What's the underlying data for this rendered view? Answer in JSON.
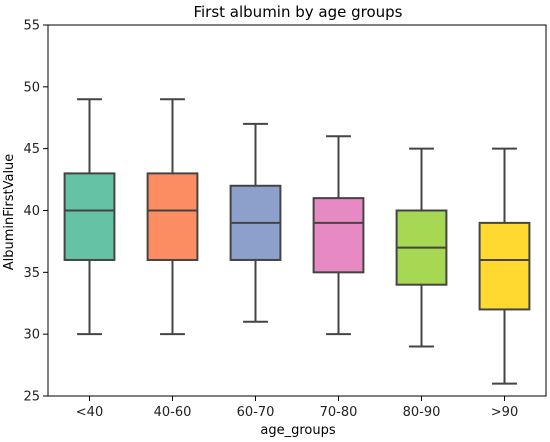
{
  "chart_data": {
    "type": "box",
    "title": "First albumin by age groups",
    "xlabel": "age_groups",
    "ylabel": "AlbuminFirstValue",
    "ylim": [
      25,
      55
    ],
    "yticks": [
      25,
      30,
      35,
      40,
      45,
      50,
      55
    ],
    "grid": false,
    "legend": "none",
    "categories": [
      "<40",
      "40-60",
      "60-70",
      "70-80",
      "80-90",
      ">90"
    ],
    "boxes": [
      {
        "category": "<40",
        "whisker_low": 30,
        "q1": 36,
        "median": 40,
        "q3": 43,
        "whisker_high": 49,
        "color": "#66c2a5"
      },
      {
        "category": "40-60",
        "whisker_low": 30,
        "q1": 36,
        "median": 40,
        "q3": 43,
        "whisker_high": 49,
        "color": "#fc8d62"
      },
      {
        "category": "60-70",
        "whisker_low": 31,
        "q1": 36,
        "median": 39,
        "q3": 42,
        "whisker_high": 47,
        "color": "#8da0cb"
      },
      {
        "category": "70-80",
        "whisker_low": 30,
        "q1": 35,
        "median": 39,
        "q3": 41,
        "whisker_high": 46,
        "color": "#e78ac3"
      },
      {
        "category": "80-90",
        "whisker_low": 29,
        "q1": 34,
        "median": 37,
        "q3": 40,
        "whisker_high": 45,
        "color": "#a6d854"
      },
      {
        "category": ">90",
        "whisker_low": 26,
        "q1": 32,
        "median": 36,
        "q3": 39,
        "whisker_high": 45,
        "color": "#ffd92f"
      }
    ]
  }
}
